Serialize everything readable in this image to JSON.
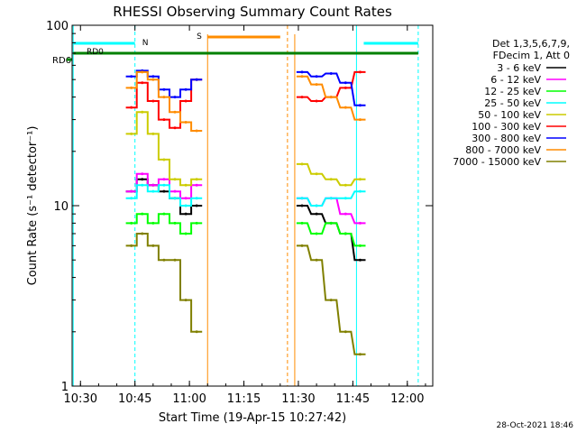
{
  "chart_data": {
    "type": "line",
    "title": "RHESSI Observing Summary Count Rates",
    "xlabel": "Start Time (19-Apr-15 10:27:42)",
    "ylabel": "Count Rate (s⁻¹ detector⁻¹)",
    "y_scale": "log",
    "ylim": [
      1,
      100
    ],
    "xlim": [
      "10:27:42",
      "12:07:00"
    ],
    "x_tick_labels": [
      "10:30",
      "10:45",
      "11:00",
      "11:15",
      "11:30",
      "11:45",
      "12:00"
    ],
    "y_tick_labels": [
      "1",
      "10",
      "100"
    ],
    "legend_header": [
      "Det 1,3,5,6,7,9,",
      "FDecim 1, Att 0"
    ],
    "legend_placement": "right",
    "footer_date": "28-Oct-2021 18:46",
    "flags": [
      {
        "label": "RD0",
        "color": "#00ffff"
      },
      {
        "label": "N",
        "color": "#00ffff"
      },
      {
        "label": "S",
        "color": "#ff8c00"
      },
      {
        "label": "RD6",
        "color": "#008000"
      }
    ],
    "x": [
      "10:44",
      "10:47",
      "10:50",
      "10:53",
      "10:56",
      "10:59",
      "11:02",
      "11:31",
      "11:35",
      "11:39",
      "11:43",
      "11:47"
    ],
    "series": [
      {
        "name": "3 - 6 keV",
        "color": "#000000",
        "values": [
          12,
          14,
          13,
          12,
          11,
          9,
          10,
          10,
          9,
          8,
          7,
          5
        ]
      },
      {
        "name": "6 - 12 keV",
        "color": "#ff00ff",
        "values": [
          12,
          15,
          13,
          14,
          12,
          11,
          13,
          11,
          10,
          11,
          9,
          8
        ]
      },
      {
        "name": "12 - 25 keV",
        "color": "#00ff00",
        "values": [
          8,
          9,
          8,
          9,
          8,
          7,
          8,
          8,
          7,
          8,
          7,
          6
        ]
      },
      {
        "name": "25 - 50 keV",
        "color": "#00ffff",
        "values": [
          11,
          13,
          12,
          13,
          11,
          10,
          11,
          11,
          10,
          11,
          11,
          12
        ]
      },
      {
        "name": "50 - 100 keV",
        "color": "#cccc00",
        "values": [
          25,
          33,
          25,
          18,
          14,
          13,
          14,
          17,
          15,
          14,
          13,
          14
        ]
      },
      {
        "name": "100 - 300 keV",
        "color": "#ff0000",
        "values": [
          35,
          48,
          38,
          30,
          27,
          38,
          50,
          40,
          38,
          40,
          45,
          55
        ]
      },
      {
        "name": "300 - 800 keV",
        "color": "#0000ff",
        "values": [
          52,
          56,
          52,
          44,
          40,
          44,
          50,
          55,
          52,
          54,
          48,
          36
        ]
      },
      {
        "name": "800 - 7000 keV",
        "color": "#ff8c00",
        "values": [
          45,
          55,
          50,
          40,
          33,
          29,
          26,
          52,
          47,
          40,
          35,
          30
        ]
      },
      {
        "name": "7000 - 15000 keV",
        "color": "#808000",
        "values": [
          6,
          7,
          6,
          5,
          5,
          3,
          2,
          6,
          5,
          3,
          2,
          1.5
        ]
      }
    ]
  }
}
